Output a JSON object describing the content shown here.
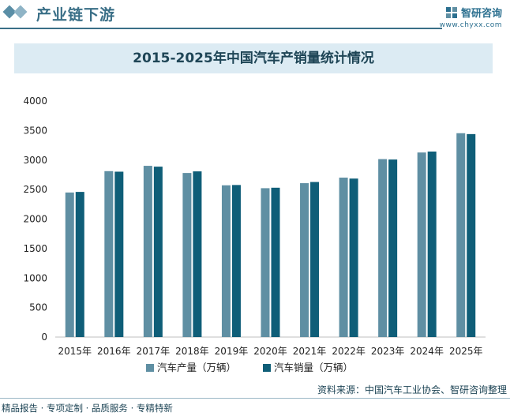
{
  "header": {
    "title": "产业链下游",
    "brand_name": "智研咨询",
    "brand_url": "www.chyxx.com"
  },
  "footer": {
    "left": "精品报告 · 专项定制 · 品质服务 · 专精特新",
    "source": "资料来源：中国汽车工业协会、智研咨询整理"
  },
  "colors": {
    "production": "#5f8fa3",
    "sales": "#0f5e78",
    "accent": "#3a6f87"
  },
  "chart_data": {
    "type": "bar",
    "title": "2015-2025年中国汽车产销量统计情况",
    "categories": [
      "2015年",
      "2016年",
      "2017年",
      "2018年",
      "2019年",
      "2020年",
      "2021年",
      "2022年",
      "2023年",
      "2024年",
      "2025年"
    ],
    "series": [
      {
        "name": "汽车产量（万辆）",
        "values": [
          2450,
          2812,
          2902,
          2781,
          2572,
          2523,
          2608,
          2702,
          3016,
          3128,
          3455
        ]
      },
      {
        "name": "汽车销量（万辆）",
        "values": [
          2460,
          2803,
          2888,
          2808,
          2577,
          2531,
          2628,
          2686,
          3009,
          3144,
          3440
        ]
      }
    ],
    "yticks": [
      "0",
      "500",
      "1000",
      "1500",
      "2000",
      "2500",
      "3000",
      "3500",
      "4000"
    ],
    "ylim": [
      0,
      4000
    ],
    "grid": false,
    "legend": "bottom"
  }
}
